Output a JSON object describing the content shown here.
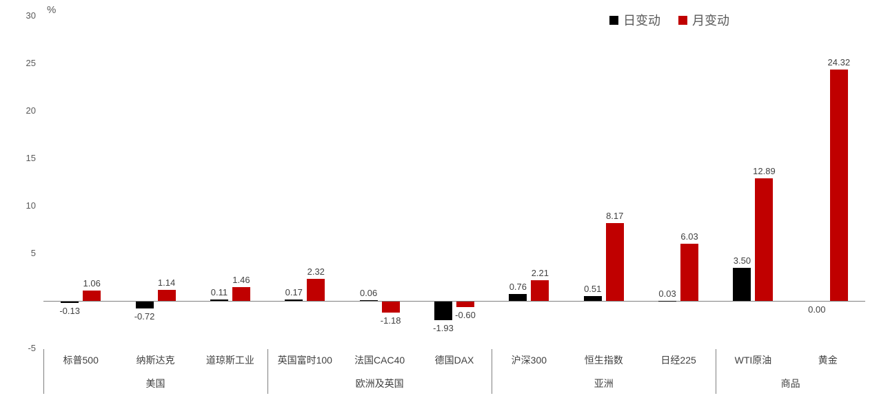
{
  "chart": {
    "unit_label": "%",
    "colors": {
      "daily": "#000000",
      "monthly": "#c00000",
      "axis": "#7f7f7f",
      "value_label": "#404040",
      "tick_label": "#595959"
    }
  },
  "chart_data": {
    "type": "bar",
    "title": "",
    "ylabel": "%",
    "xlabel": "",
    "ylim": [
      -5,
      30
    ],
    "y_ticks": [
      30,
      25,
      20,
      15,
      10,
      5,
      -5
    ],
    "grid": false,
    "legend_position": "top-right",
    "categories": [
      "标普500",
      "纳斯达克",
      "道琼斯工业",
      "英国富时100",
      "法国CAC40",
      "德国DAX",
      "沪深300",
      "恒生指数",
      "日经225",
      "WTI原油",
      "黄金"
    ],
    "groups": [
      {
        "label": "美国",
        "start": 0,
        "end": 2
      },
      {
        "label": "欧洲及英国",
        "start": 3,
        "end": 5
      },
      {
        "label": "亚洲",
        "start": 6,
        "end": 8
      },
      {
        "label": "商品",
        "start": 9,
        "end": 10
      }
    ],
    "series": [
      {
        "name": "日变动",
        "color": "#000000",
        "values": [
          -0.13,
          -0.72,
          0.11,
          0.17,
          0.06,
          -1.93,
          0.76,
          0.51,
          0.03,
          3.5,
          0.0
        ]
      },
      {
        "name": "月变动",
        "color": "#c00000",
        "values": [
          1.06,
          1.14,
          1.46,
          2.32,
          -1.18,
          -0.6,
          2.21,
          8.17,
          6.03,
          12.89,
          24.32
        ]
      }
    ]
  }
}
